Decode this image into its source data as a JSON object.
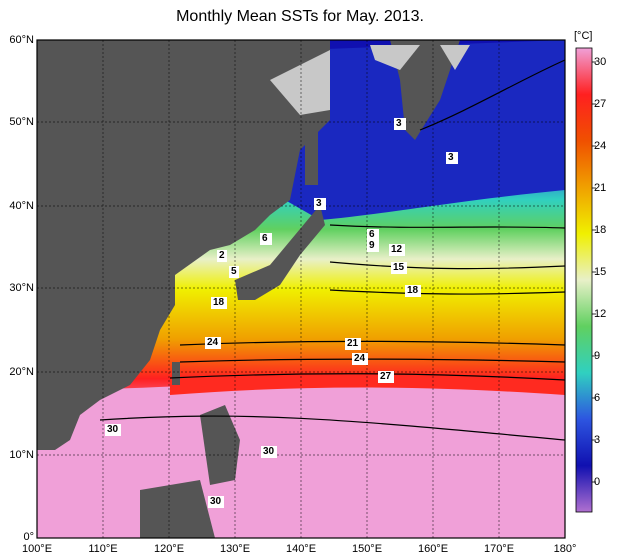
{
  "title": "Monthly Mean SSTs for May. 2013.",
  "colorbar": {
    "unit": "[°C]",
    "ticks": [
      "30",
      "27",
      "24",
      "21",
      "18",
      "15",
      "12",
      "9",
      "6",
      "3",
      "0"
    ]
  },
  "axes": {
    "lat_labels": [
      "60°N",
      "50°N",
      "40°N",
      "30°N",
      "20°N",
      "10°N",
      "0°"
    ],
    "lon_labels": [
      "100°E",
      "110°E",
      "120°E",
      "130°E",
      "140°E",
      "150°E",
      "160°E",
      "170°E",
      "180°"
    ]
  },
  "contour_labels": [
    "3",
    "3",
    "3",
    "6",
    "6",
    "9",
    "12",
    "15",
    "18",
    "18",
    "21",
    "24",
    "24",
    "27",
    "30",
    "30",
    "30",
    "2",
    "5"
  ],
  "colors": {
    "land": "#555555",
    "sea_ice": "#c8c8c8",
    "warm_30": "#f0a0d8",
    "cold_0": "#1010b0"
  }
}
